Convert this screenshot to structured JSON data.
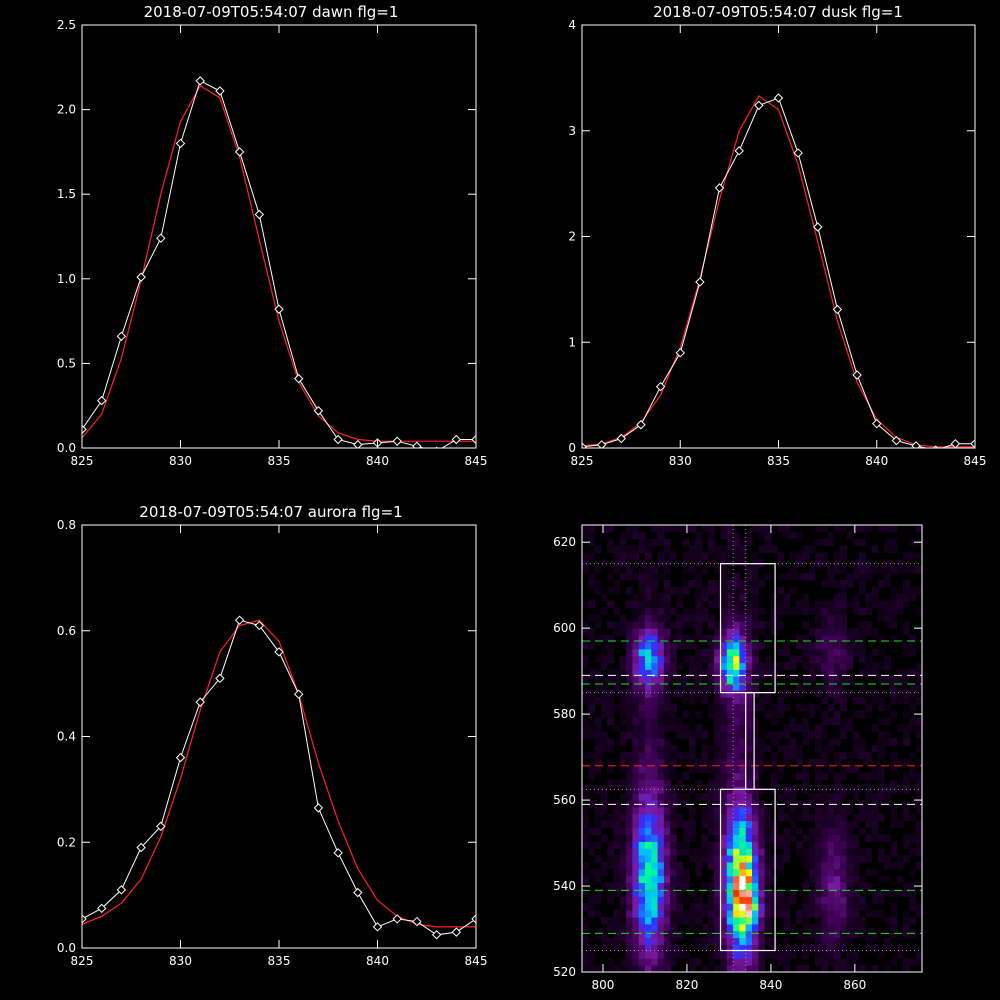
{
  "chart_data": [
    {
      "type": "line",
      "title": "2018-07-09T05:54:07 dawn flg=1",
      "xlim": [
        825,
        845
      ],
      "ylim": [
        0,
        2.5
      ],
      "xticks": [
        "825",
        "830",
        "835",
        "840",
        "845"
      ],
      "yticks": [
        "0.0",
        "0.5",
        "1.0",
        "1.5",
        "2.0",
        "2.5"
      ],
      "series": [
        {
          "style": "data",
          "color": "#ffffff",
          "marker": "diamond",
          "x": [
            825,
            826,
            827,
            828,
            829,
            830,
            831,
            832,
            833,
            834,
            835,
            836,
            837,
            838,
            839,
            840,
            841,
            842,
            843,
            844,
            845
          ],
          "y": [
            0.11,
            0.28,
            0.66,
            1.01,
            1.24,
            1.8,
            2.17,
            2.11,
            1.75,
            1.38,
            0.82,
            0.41,
            0.22,
            0.05,
            0.02,
            0.03,
            0.04,
            0.01,
            -0.02,
            0.05,
            0.05
          ]
        },
        {
          "style": "fit",
          "color": "#ff2020",
          "x": [
            825,
            826,
            827,
            828,
            829,
            830,
            831,
            832,
            833,
            834,
            835,
            836,
            837,
            838,
            839,
            840,
            841,
            842,
            843,
            844,
            845
          ],
          "y": [
            0.06,
            0.2,
            0.53,
            0.99,
            1.5,
            1.93,
            2.14,
            2.07,
            1.72,
            1.23,
            0.75,
            0.39,
            0.19,
            0.09,
            0.05,
            0.04,
            0.04,
            0.04,
            0.04,
            0.04,
            0.04
          ]
        }
      ]
    },
    {
      "type": "line",
      "title": "2018-07-09T05:54:07 dusk flg=1",
      "xlim": [
        825,
        845
      ],
      "ylim": [
        0,
        4
      ],
      "xticks": [
        "825",
        "830",
        "835",
        "840",
        "845"
      ],
      "yticks": [
        "0",
        "1",
        "2",
        "3",
        "4"
      ],
      "series": [
        {
          "style": "data",
          "color": "#ffffff",
          "marker": "diamond",
          "x": [
            825,
            826,
            827,
            828,
            829,
            830,
            831,
            832,
            833,
            834,
            835,
            836,
            837,
            838,
            839,
            840,
            841,
            842,
            843,
            844,
            845
          ],
          "y": [
            0.01,
            0.03,
            0.09,
            0.22,
            0.58,
            0.9,
            1.57,
            2.46,
            2.81,
            3.24,
            3.31,
            2.79,
            2.09,
            1.31,
            0.69,
            0.23,
            0.07,
            0.02,
            -0.02,
            0.04,
            0.04
          ]
        },
        {
          "style": "fit",
          "color": "#ff2020",
          "x": [
            825,
            826,
            827,
            828,
            829,
            830,
            831,
            832,
            833,
            834,
            835,
            836,
            837,
            838,
            839,
            840,
            841,
            842,
            843,
            844,
            845
          ],
          "y": [
            0.02,
            0.04,
            0.1,
            0.24,
            0.5,
            0.95,
            1.6,
            2.35,
            3.0,
            3.33,
            3.2,
            2.68,
            1.95,
            1.2,
            0.62,
            0.27,
            0.1,
            0.03,
            0.01,
            0.01,
            0.01
          ]
        }
      ]
    },
    {
      "type": "line",
      "title": "2018-07-09T05:54:07 aurora flg=1",
      "xlim": [
        825,
        845
      ],
      "ylim": [
        0,
        0.8
      ],
      "xticks": [
        "825",
        "830",
        "835",
        "840",
        "845"
      ],
      "yticks": [
        "0.0",
        "0.2",
        "0.4",
        "0.6",
        "0.8"
      ],
      "series": [
        {
          "style": "data",
          "color": "#ffffff",
          "marker": "diamond",
          "x": [
            825,
            826,
            827,
            828,
            829,
            830,
            831,
            832,
            833,
            834,
            835,
            836,
            837,
            838,
            839,
            840,
            841,
            842,
            843,
            844,
            845
          ],
          "y": [
            0.055,
            0.075,
            0.11,
            0.19,
            0.23,
            0.36,
            0.465,
            0.51,
            0.62,
            0.61,
            0.56,
            0.48,
            0.265,
            0.18,
            0.105,
            0.04,
            0.055,
            0.05,
            0.025,
            0.03,
            0.055
          ]
        },
        {
          "style": "fit",
          "color": "#ff2020",
          "x": [
            825,
            826,
            827,
            828,
            829,
            830,
            831,
            832,
            833,
            834,
            835,
            836,
            837,
            838,
            839,
            840,
            841,
            842,
            843,
            844,
            845
          ],
          "y": [
            0.045,
            0.06,
            0.085,
            0.13,
            0.21,
            0.32,
            0.45,
            0.56,
            0.61,
            0.62,
            0.58,
            0.48,
            0.35,
            0.24,
            0.15,
            0.09,
            0.06,
            0.045,
            0.04,
            0.04,
            0.04
          ]
        }
      ]
    },
    {
      "type": "heatmap",
      "xlim": [
        795,
        876
      ],
      "ylim": [
        520,
        624
      ],
      "xticks": [
        "800",
        "820",
        "840",
        "860"
      ],
      "yticks": [
        "520",
        "540",
        "560",
        "580",
        "600",
        "620"
      ],
      "colormap": [
        "#000000",
        "#3a0050",
        "#7a1aa0",
        "#3030ff",
        "#00c0ff",
        "#00ff90",
        "#ffff00",
        "#ff3000",
        "#ffffff"
      ],
      "sources": [
        {
          "x": 811,
          "y": 593,
          "sx": 2.6,
          "sy": 4.5,
          "amp": 0.45
        },
        {
          "x": 831,
          "y": 592,
          "sx": 2.3,
          "sy": 4.5,
          "amp": 0.6
        },
        {
          "x": 811,
          "y": 542,
          "sx": 2.7,
          "sy": 12,
          "amp": 0.55
        },
        {
          "x": 833,
          "y": 540,
          "sx": 2.6,
          "sy": 11,
          "amp": 0.8
        },
        {
          "x": 835,
          "y": 535,
          "sx": 1.4,
          "sy": 2.5,
          "amp": 0.45
        },
        {
          "x": 855,
          "y": 540,
          "sx": 2.6,
          "sy": 9,
          "amp": 0.18
        },
        {
          "x": 855,
          "y": 595,
          "sx": 2.6,
          "sy": 6,
          "amp": 0.12
        },
        {
          "x": 811,
          "y": 570,
          "sx": 2.5,
          "sy": 25,
          "amp": 0.07
        },
        {
          "x": 832,
          "y": 570,
          "sx": 2.5,
          "sy": 25,
          "amp": 0.1
        }
      ],
      "background_level": 0.04,
      "boxes": [
        {
          "x0": 828,
          "x1": 841,
          "y0": 585,
          "y1": 615
        },
        {
          "x0": 834,
          "x1": 836,
          "y0": 562.5,
          "y1": 585
        },
        {
          "x0": 828,
          "x1": 841,
          "y0": 525,
          "y1": 562.5
        }
      ],
      "hlines": [
        {
          "y": 615,
          "color": "#d070d0",
          "style": "dotted"
        },
        {
          "y": 597,
          "color": "#20e020",
          "style": "dashed"
        },
        {
          "y": 589,
          "color": "#ffffff",
          "style": "dashed"
        },
        {
          "y": 587,
          "color": "#20e020",
          "style": "dashed"
        },
        {
          "y": 585,
          "color": "#d070d0",
          "style": "dotted"
        },
        {
          "y": 568,
          "color": "#ff2020",
          "style": "dashed"
        },
        {
          "y": 562.5,
          "color": "#d070d0",
          "style": "dotted"
        },
        {
          "y": 559,
          "color": "#ffffff",
          "style": "dashed"
        },
        {
          "y": 539,
          "color": "#20e020",
          "style": "dashed"
        },
        {
          "y": 529,
          "color": "#20e020",
          "style": "dashed"
        },
        {
          "y": 525,
          "color": "#d070d0",
          "style": "dotted"
        }
      ],
      "vlines": [
        {
          "x": 831,
          "color": "#d070d0",
          "style": "dotted"
        },
        {
          "x": 834,
          "color": "#d070d0",
          "style": "dotted"
        }
      ]
    }
  ]
}
